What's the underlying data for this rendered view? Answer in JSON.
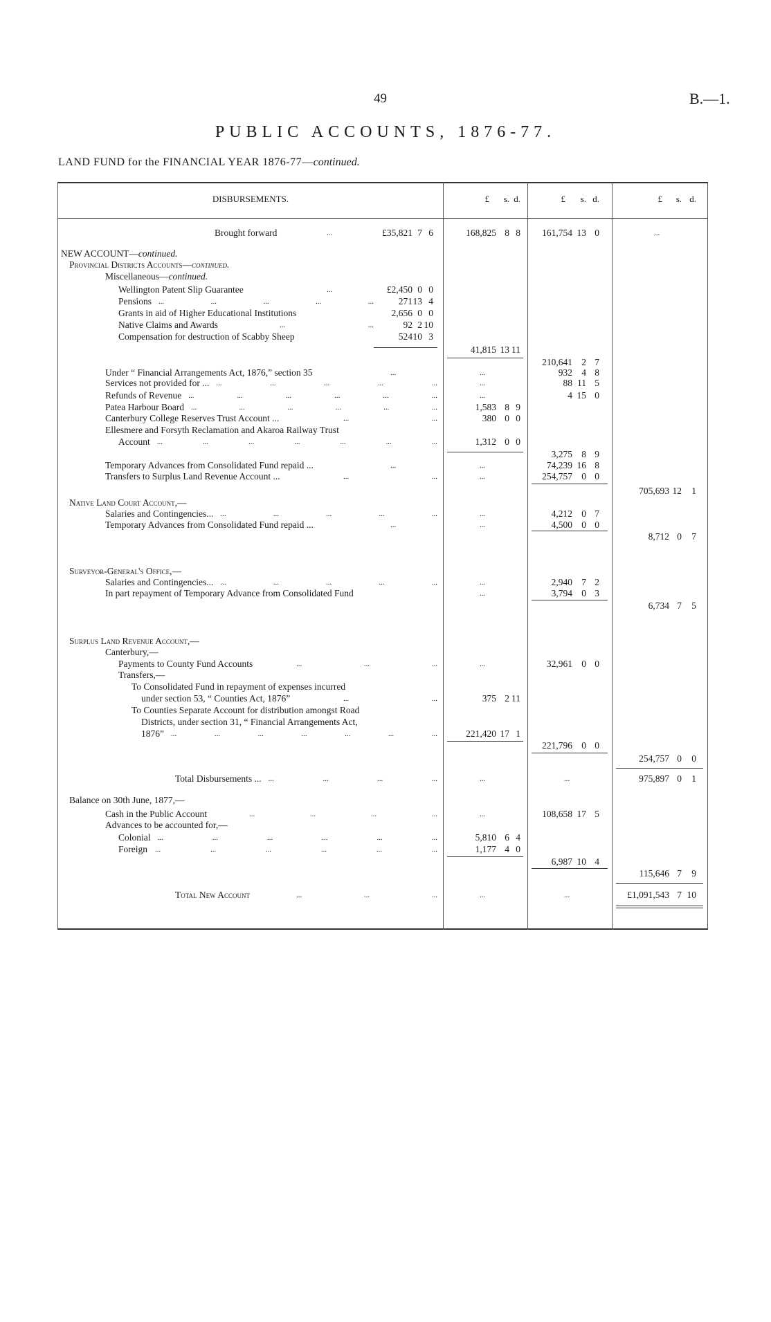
{
  "page_number": "49",
  "document_ref": "B.—1.",
  "title": "PUBLIC ACCOUNTS, 1876-77.",
  "subtitle": {
    "text": "LAND FUND for the FINANCIAL YEAR 1876-77—",
    "italic": "continued."
  },
  "headers": {
    "description": "DISBURSEMENTS.",
    "pound": "£",
    "shillings": "s.",
    "pence": "d."
  },
  "rows": [
    {
      "label": "Brought forward",
      "indent": "center",
      "dots": 1,
      "inner": [
        "£35,821",
        "7",
        "6"
      ],
      "c1": [
        "168,825",
        "8",
        "8"
      ],
      "c2": [
        "161,754",
        "13",
        "0"
      ],
      "c3": "..."
    },
    {
      "label": "NEW ACCOUNT—",
      "italic": "continued.",
      "indent": 0
    },
    {
      "label": "Provincial Districts Accounts—",
      "italic": "continued.",
      "indent": 1,
      "smallcaps": true
    },
    {
      "label": "Miscellaneous—",
      "italic": "continued.",
      "indent": 2
    },
    {
      "label": "Wellington Patent Slip Guarantee",
      "indent": 3,
      "dots": 1,
      "inner": [
        "£2,450",
        "0",
        "0"
      ]
    },
    {
      "label": "Pensions",
      "indent": 3,
      "dots": 5,
      "inner": [
        "271",
        "13",
        "4"
      ]
    },
    {
      "label": "Grants in aid of Higher Educational Institutions",
      "indent": 3,
      "inner": [
        "2,656",
        "0",
        "0"
      ]
    },
    {
      "label": "Native Claims and Awards",
      "indent": 3,
      "dots": 2,
      "inner": [
        "92",
        "2",
        "10"
      ]
    },
    {
      "label": "Compensation for destruction of Scabby Sheep",
      "indent": 3,
      "inner": [
        "524",
        "10",
        "3"
      ]
    },
    {
      "label": "",
      "c1": [
        "41,815",
        "13",
        "11"
      ]
    },
    {
      "label": "",
      "c2": [
        "210,641",
        "2",
        "7"
      ]
    },
    {
      "label": "Under “ Financial Arrangements Act, 1876,” section 35",
      "indent": 2,
      "dots": 1,
      "c1": "...",
      "c2": [
        "932",
        "4",
        "8"
      ]
    },
    {
      "label": "Services not provided for ...",
      "indent": 2,
      "dots": 5,
      "c1": "...",
      "c2": [
        "88",
        "11",
        "5"
      ]
    },
    {
      "label": "Refunds of Revenue",
      "indent": 2,
      "dots": 6,
      "c1": "...",
      "c2": [
        "4",
        "15",
        "0"
      ]
    },
    {
      "label": "Patea Harbour Board",
      "indent": 2,
      "dots": 6,
      "c1": [
        "1,583",
        "8",
        "9"
      ]
    },
    {
      "label": "Canterbury College Reserves Trust Account ...",
      "indent": 2,
      "dots": 2,
      "c1": [
        "380",
        "0",
        "0"
      ]
    },
    {
      "label": "Ellesmere and Forsyth Reclamation and Akaroa Railway Trust",
      "indent": 2
    },
    {
      "label": "Account",
      "indent": 3,
      "dots": 7,
      "c1": [
        "1,312",
        "0",
        "0"
      ]
    },
    {
      "label": "",
      "c2": [
        "3,275",
        "8",
        "9"
      ]
    },
    {
      "label": "Temporary Advances from Consolidated Fund repaid ...",
      "indent": 2,
      "dots": 1,
      "c1": "...",
      "c2": [
        "74,239",
        "16",
        "8"
      ]
    },
    {
      "label": "Transfers to Surplus Land Revenue Account ...",
      "indent": 2,
      "dots": 2,
      "c1": "...",
      "c2": [
        "254,757",
        "0",
        "0"
      ]
    },
    {
      "label": "",
      "c3": [
        "705,693",
        "12",
        "1"
      ]
    },
    {
      "label": "Native Land Court Account,—",
      "indent": 1,
      "smallcaps": true
    },
    {
      "label": "Salaries and Contingencies...",
      "indent": 2,
      "dots": 5,
      "c1": "...",
      "c2": [
        "4,212",
        "0",
        "7"
      ]
    },
    {
      "label": "Temporary Advances from Consolidated Fund repaid ...",
      "indent": 2,
      "dots": 1,
      "c1": "...",
      "c2": [
        "4,500",
        "0",
        "0"
      ]
    },
    {
      "label": "",
      "c3": [
        "8,712",
        "0",
        "7"
      ]
    },
    {
      "label": "Surveyor-General's Office,—",
      "indent": 1,
      "smallcaps": true
    },
    {
      "label": "Salaries and Contingencies...",
      "indent": 2,
      "dots": 5,
      "c1": "...",
      "c2": [
        "2,940",
        "7",
        "2"
      ]
    },
    {
      "label": "In part repayment of Temporary Advance from Consolidated Fund",
      "indent": 2,
      "c1": "...",
      "c2": [
        "3,794",
        "0",
        "3"
      ]
    },
    {
      "label": "",
      "c3": [
        "6,734",
        "7",
        "5"
      ]
    },
    {
      "label": "Surplus Land Revenue Account,—",
      "indent": 1,
      "smallcaps": true
    },
    {
      "label": "Canterbury,—",
      "indent": 2
    },
    {
      "label": "Payments to County Fund Accounts",
      "indent": 3,
      "dots": 3,
      "c1": "...",
      "c2": [
        "32,961",
        "0",
        "0"
      ]
    },
    {
      "label": "Transfers,—",
      "indent": 3
    },
    {
      "label": "To Consolidated Fund in repayment of expenses incurred",
      "indent": 4
    },
    {
      "label": "under section 53, “ Counties Act, 1876”",
      "indent": 5,
      "dots": 2,
      "c1": [
        "375",
        "2",
        "11"
      ]
    },
    {
      "label": "To Counties Separate Account for distribution amongst Road",
      "indent": 4
    },
    {
      "label": "Districts, under section 31, “ Financial Arrangements Act,",
      "indent": 5
    },
    {
      "label": "1876”",
      "indent": 5,
      "dots": 7,
      "c1": [
        "221,420",
        "17",
        "1"
      ]
    },
    {
      "label": "",
      "c2": [
        "221,796",
        "0",
        "0"
      ]
    },
    {
      "label": "",
      "c3": [
        "254,757",
        "0",
        "0"
      ]
    },
    {
      "label": "Total Disbursements ...",
      "indent": "total",
      "dots": 4,
      "c1": "...",
      "c2": "...",
      "c3": [
        "975,897",
        "0",
        "1"
      ]
    },
    {
      "label": "Balance on 30th June, 1877,—",
      "indent": 1
    },
    {
      "label": "Cash in the Public Account",
      "indent": 2,
      "dots": 4,
      "c1": "...",
      "c2": [
        "108,658",
        "17",
        "5"
      ]
    },
    {
      "label": "Advances to be accounted for,—",
      "indent": 2
    },
    {
      "label": "Colonial",
      "indent": 3,
      "dots": 6,
      "c1": [
        "5,810",
        "6",
        "4"
      ]
    },
    {
      "label": "Foreign",
      "indent": 3,
      "dots": 6,
      "c1": [
        "1,177",
        "4",
        "0"
      ]
    },
    {
      "label": "",
      "c2": [
        "6,987",
        "10",
        "4"
      ]
    },
    {
      "label": "",
      "c3": [
        "115,646",
        "7",
        "9"
      ]
    },
    {
      "label": "Total New Account",
      "indent": "total",
      "smallcaps": true,
      "dots": 3,
      "c1": "...",
      "c2": "...",
      "c3": [
        "£1,091,543",
        "7",
        "10"
      ]
    }
  ]
}
